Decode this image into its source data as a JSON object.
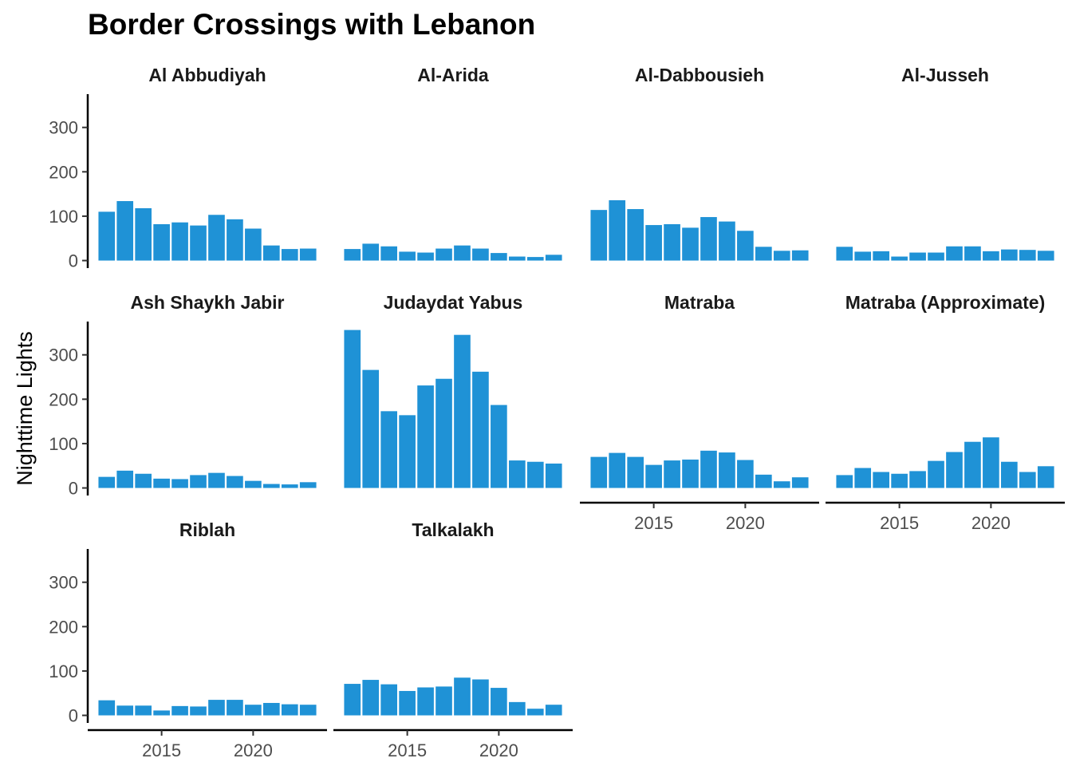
{
  "chart_data": {
    "type": "bar",
    "title": "Border Crossings with Lebanon",
    "xlabel": "",
    "ylabel": "Nighttime Lights",
    "x": [
      2012,
      2013,
      2014,
      2015,
      2016,
      2017,
      2018,
      2019,
      2020,
      2021,
      2022,
      2023
    ],
    "xticks": [
      "2015",
      "2020"
    ],
    "yticks": [
      "0",
      "100",
      "200",
      "300"
    ],
    "ylim": [
      0,
      375
    ],
    "bar_color": "#1f92d6",
    "grid": false,
    "facets": [
      {
        "name": "Al Abbudiyah",
        "values": [
          110,
          134,
          118,
          82,
          86,
          79,
          103,
          93,
          72,
          34,
          26,
          27
        ]
      },
      {
        "name": "Al-Arida",
        "values": [
          26,
          38,
          32,
          20,
          18,
          27,
          34,
          27,
          17,
          9,
          8,
          13
        ]
      },
      {
        "name": "Al-Dabbousieh",
        "values": [
          114,
          136,
          116,
          80,
          82,
          74,
          98,
          88,
          67,
          31,
          22,
          23
        ]
      },
      {
        "name": "Al-Jusseh",
        "values": [
          31,
          20,
          21,
          9,
          18,
          18,
          32,
          32,
          21,
          25,
          24,
          22
        ]
      },
      {
        "name": "Ash Shaykh Jabir",
        "values": [
          25,
          39,
          32,
          21,
          20,
          29,
          34,
          27,
          16,
          9,
          8,
          13
        ]
      },
      {
        "name": "Judaydat Yabus",
        "values": [
          356,
          266,
          173,
          164,
          231,
          246,
          345,
          262,
          187,
          62,
          59,
          55
        ]
      },
      {
        "name": "Matraba",
        "values": [
          70,
          79,
          70,
          52,
          62,
          64,
          84,
          80,
          63,
          30,
          15,
          24
        ]
      },
      {
        "name": "Matraba (Approximate)",
        "values": [
          29,
          45,
          36,
          32,
          38,
          61,
          81,
          104,
          114,
          59,
          36,
          49
        ]
      },
      {
        "name": "Riblah",
        "values": [
          34,
          22,
          22,
          11,
          21,
          20,
          35,
          35,
          24,
          28,
          25,
          24
        ]
      },
      {
        "name": "Talkalakh",
        "values": [
          71,
          80,
          70,
          55,
          63,
          65,
          85,
          81,
          62,
          30,
          15,
          24
        ]
      }
    ]
  }
}
